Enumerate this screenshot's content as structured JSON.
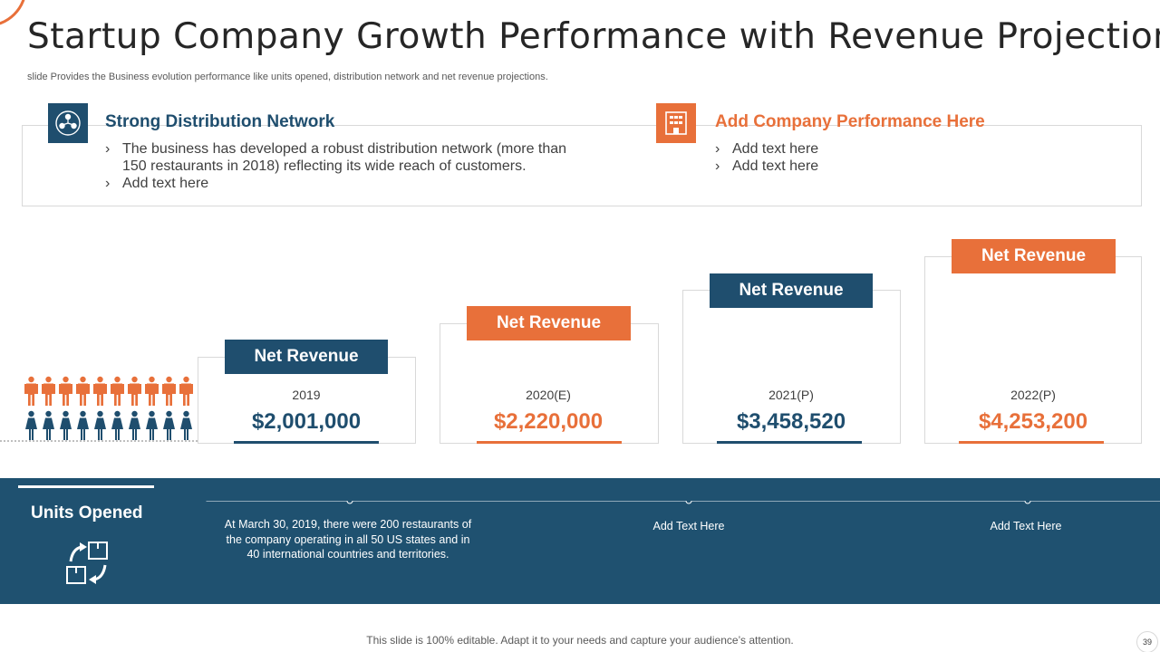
{
  "slide": {
    "title": "Startup Company Growth Performance with Revenue Projections",
    "subtitle": "slide Provides the Business evolution performance like units opened, distribution network and net revenue projections.",
    "footer": "This slide is 100% editable. Adapt it to your needs and capture your audience’s attention.",
    "page_number": "39"
  },
  "colors": {
    "primary": "#1f4e6e",
    "accent": "#e8703a",
    "band": "#1f5170"
  },
  "sections": [
    {
      "icon": "network-icon",
      "heading": "Strong Distribution Network",
      "bullets": [
        "The business has developed a robust distribution network (more than 150 restaurants  in 2018) reflecting its wide reach of customers.",
        "Add text here"
      ]
    },
    {
      "icon": "building-icon",
      "heading": "Add Company Performance Here",
      "bullets": [
        "Add text here",
        "Add text here"
      ]
    }
  ],
  "revenue_cards": [
    {
      "label": "Net Revenue",
      "year": "2019",
      "value": "$2,001,000",
      "theme": "blue"
    },
    {
      "label": "Net Revenue",
      "year": "2020(E)",
      "value": "$2,220,000",
      "theme": "orange"
    },
    {
      "label": "Net Revenue",
      "year": "2021(P)",
      "value": "$3,458,520",
      "theme": "blue"
    },
    {
      "label": "Net Revenue",
      "year": "2022(P)",
      "value": "$4,253,200",
      "theme": "orange"
    }
  ],
  "units_opened": {
    "title": "Units Opened",
    "icon": "boxes-exchange-icon",
    "items": [
      "At March 30, 2019, there were 200 restaurants of the company operating in all 50 US states and in 40 international countries and territories.",
      "Add Text Here",
      "Add Text Here"
    ]
  }
}
